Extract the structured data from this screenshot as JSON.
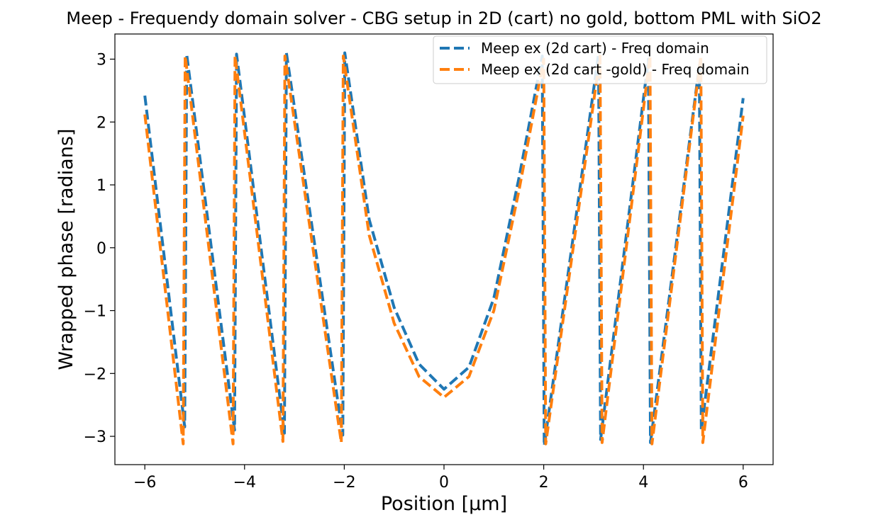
{
  "chart_data": {
    "type": "line",
    "title": "Meep - Frequendy domain solver - CBG setup in 2D (cart) no gold, bottom PML with SiO2",
    "xlabel": "Position  [μm]",
    "ylabel": "Wrapped phase [radians]",
    "xlim": [
      -6.6,
      6.6
    ],
    "ylim": [
      -3.45,
      3.4
    ],
    "xticks": [
      -6,
      -4,
      -2,
      0,
      2,
      4,
      6
    ],
    "xtick_labels": [
      "−6",
      "−4",
      "−2",
      "0",
      "2",
      "4",
      "6"
    ],
    "yticks": [
      -3,
      -2,
      -1,
      0,
      1,
      2,
      3
    ],
    "ytick_labels": [
      "−3",
      "−2",
      "−1",
      "0",
      "1",
      "2",
      "3"
    ],
    "grid": false,
    "legend_position": "top-right",
    "series": [
      {
        "name": "Meep ex (2d cart) - Freq domain",
        "color": "#1f77b4",
        "style": "dashed",
        "x": [
          -6.0,
          -5.2,
          -5.18,
          -5.16,
          -4.2,
          -4.18,
          -4.16,
          -3.2,
          -3.18,
          -3.16,
          -2.03,
          -2.01,
          -1.99,
          -1.5,
          -1.0,
          -0.5,
          0.0,
          0.5,
          1.0,
          1.5,
          1.97,
          1.99,
          2.01,
          3.1,
          3.12,
          3.14,
          4.1,
          4.12,
          4.14,
          5.12,
          5.14,
          5.16,
          6.0
        ],
        "y": [
          2.42,
          -2.85,
          0.0,
          3.08,
          -2.9,
          0.0,
          3.08,
          -2.95,
          0.0,
          3.1,
          -2.98,
          0.0,
          3.1,
          0.45,
          -0.95,
          -1.85,
          -2.25,
          -1.9,
          -0.8,
          1.1,
          3.05,
          0.0,
          -3.15,
          3.08,
          0.0,
          -3.05,
          3.0,
          0.0,
          -3.1,
          2.9,
          0.0,
          -2.9,
          2.38
        ]
      },
      {
        "name": "Meep ex (2d cart -gold) - Freq domain",
        "color": "#ff7f0e",
        "style": "dashed",
        "x": [
          -6.0,
          -5.23,
          -5.21,
          -5.19,
          -4.23,
          -4.21,
          -4.19,
          -3.23,
          -3.21,
          -3.19,
          -2.06,
          -2.04,
          -2.02,
          -1.5,
          -1.0,
          -0.5,
          0.0,
          0.5,
          1.0,
          1.5,
          2.0,
          2.02,
          2.04,
          3.13,
          3.15,
          3.17,
          4.13,
          4.15,
          4.17,
          5.15,
          5.17,
          5.19,
          6.0
        ],
        "y": [
          2.12,
          -3.12,
          0.0,
          3.05,
          -3.12,
          0.0,
          3.05,
          -3.08,
          0.0,
          3.05,
          -3.1,
          0.0,
          3.05,
          0.2,
          -1.2,
          -2.05,
          -2.38,
          -2.05,
          -1.0,
          0.9,
          3.0,
          0.0,
          -3.12,
          3.05,
          0.0,
          -3.1,
          3.05,
          0.0,
          -3.12,
          3.05,
          0.0,
          -3.1,
          2.1
        ]
      }
    ]
  }
}
